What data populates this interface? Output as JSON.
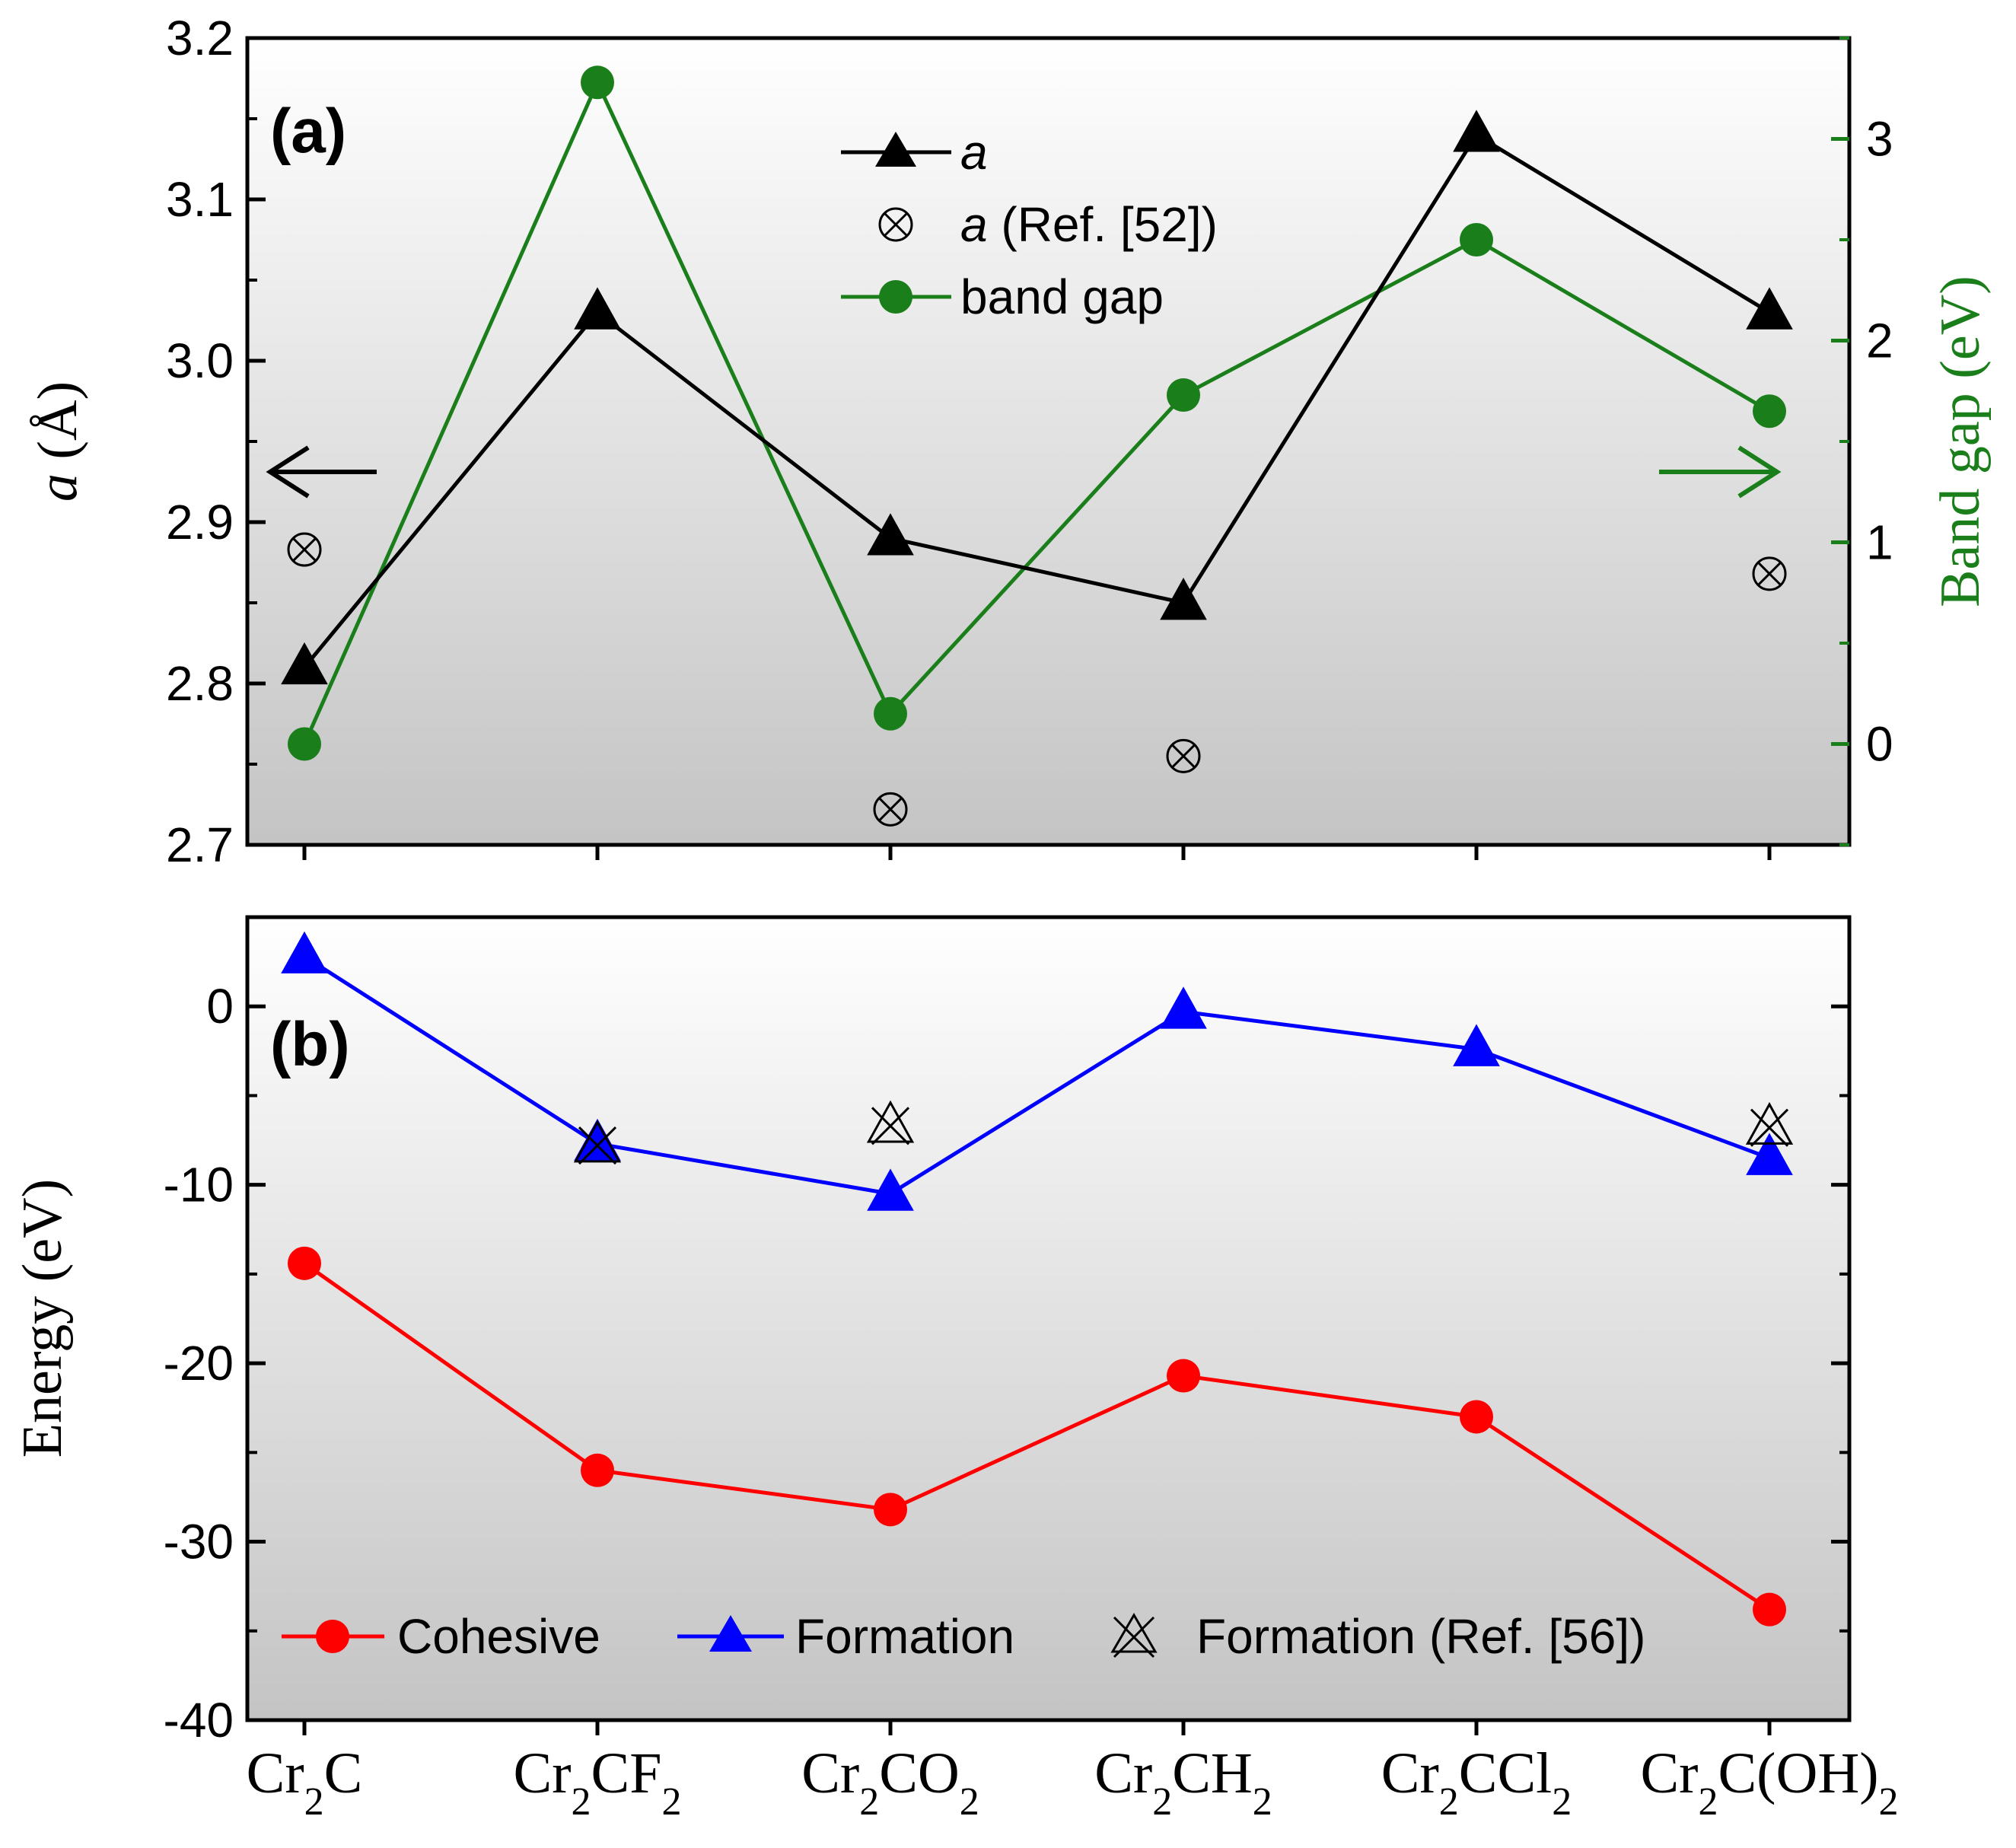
{
  "chart_data": [
    {
      "panel": "(a)",
      "type": "line",
      "categories": [
        {
          "base": "Cr",
          "sub1": "2",
          "rest": "C",
          "sub2": ""
        },
        {
          "base": "Cr",
          "sub1": "2",
          "rest": "CF",
          "sub2": "2"
        },
        {
          "base": "Cr",
          "sub1": "2",
          "rest": "CO",
          "sub2": "2"
        },
        {
          "base": "Cr",
          "sub1": "2",
          "rest": "CH",
          "sub2": "2"
        },
        {
          "base": "Cr",
          "sub1": "2",
          "rest": "CCl",
          "sub2": "2"
        },
        {
          "base": "Cr",
          "sub1": "2",
          "rest": "C(OH)",
          "sub2": "2"
        }
      ],
      "left_axis": {
        "label_italic": "a",
        "label_rest": " (Å)",
        "ylim": [
          2.7,
          3.2
        ],
        "ticks": [
          "2.7",
          "2.8",
          "2.9",
          "3.0",
          "3.1",
          "3.2"
        ],
        "color": "#000000"
      },
      "right_axis": {
        "label": "Band gap (eV)",
        "ylim": [
          -0.5,
          3.5
        ],
        "ticks": [
          "0",
          "1",
          "2",
          "3"
        ],
        "color": "#1a7f1a"
      },
      "series": [
        {
          "name": "a",
          "italic": true,
          "axis": "left",
          "marker": "triangle",
          "line": true,
          "color": "#000000",
          "values": [
            2.81,
            3.03,
            2.89,
            2.85,
            3.14,
            3.03
          ]
        },
        {
          "name": "a",
          "suffix": " (Ref. [52])",
          "italic": true,
          "axis": "left",
          "marker": "circle-x",
          "line": false,
          "color": "#000000",
          "values": [
            2.883,
            null,
            2.722,
            2.755,
            null,
            2.868
          ]
        },
        {
          "name": "band gap",
          "italic": false,
          "axis": "right",
          "marker": "circle",
          "line": true,
          "color": "#1a7f1a",
          "values": [
            0.0,
            3.28,
            0.15,
            1.73,
            2.5,
            1.65
          ]
        }
      ],
      "legend": "top-center"
    },
    {
      "panel": "(b)",
      "type": "line",
      "left_axis": {
        "label": "Energy (eV)",
        "ylim": [
          -40,
          5
        ],
        "ticks": [
          "-40",
          "-30",
          "-20",
          "-10",
          "0"
        ],
        "color": "#000000"
      },
      "series": [
        {
          "name": "Cohesive",
          "marker": "circle",
          "line": true,
          "color": "#ff0000",
          "values": [
            -14.4,
            -26.0,
            -28.2,
            -20.7,
            -23.0,
            -33.8
          ]
        },
        {
          "name": "Formation",
          "marker": "triangle",
          "line": true,
          "color": "#0000ff",
          "values": [
            2.8,
            -7.7,
            -10.5,
            -0.3,
            -2.4,
            -8.5
          ]
        },
        {
          "name": "Formation (Ref. [56])",
          "marker": "triangle-x",
          "line": false,
          "color": "#000000",
          "values": [
            null,
            -7.8,
            -6.7,
            null,
            null,
            -6.8
          ]
        }
      ],
      "legend": "bottom"
    }
  ]
}
